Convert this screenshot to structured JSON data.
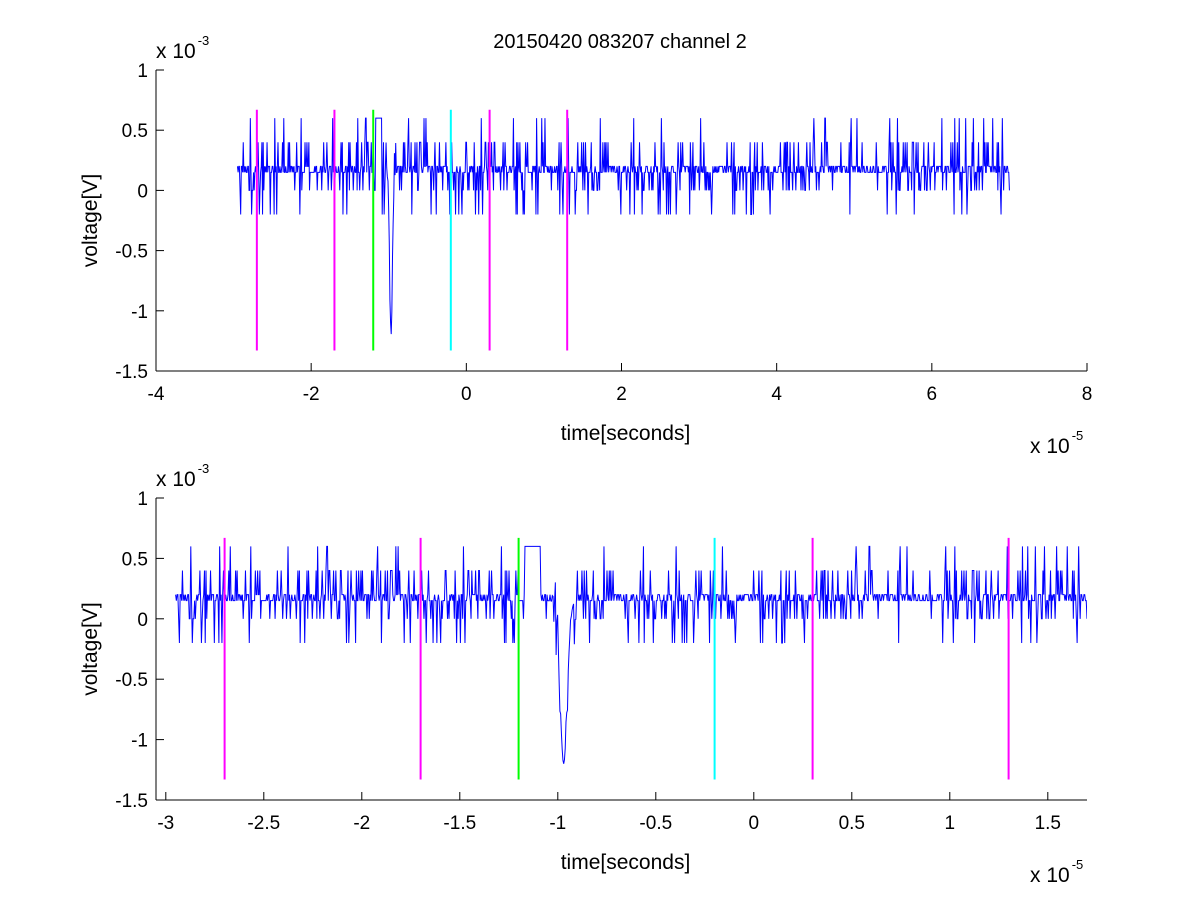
{
  "figure": {
    "title": "20150420 083207 channel 2"
  },
  "chart_data": [
    {
      "type": "line",
      "panel": "top",
      "xlabel": "time[seconds]",
      "ylabel": "voltage[V]",
      "x_scale_label": "x 10",
      "x_scale_exponent": "-5",
      "y_scale_label": "x 10",
      "y_scale_exponent": "-3",
      "xlim": [
        -4,
        8
      ],
      "ylim": [
        -1.5,
        1
      ],
      "x_ticks": [
        -4,
        -2,
        0,
        2,
        4,
        6,
        8
      ],
      "x_tick_labels": [
        "-4",
        "-2",
        "0",
        "2",
        "4",
        "6",
        "8"
      ],
      "y_ticks": [
        -1.5,
        -1,
        -0.5,
        0,
        0.5,
        1
      ],
      "y_tick_labels": [
        "-1.5",
        "-1",
        "-0.5",
        "0",
        "0.5",
        "1"
      ],
      "signal": {
        "color": "#0000ff",
        "x_range": [
          -2.95,
          7.0
        ],
        "baseline": 0.15,
        "spike_x": -0.97,
        "spike_y": -1.2
      },
      "markers": [
        {
          "x": -2.7,
          "color": "#ff00ff",
          "y_range": [
            -1.33,
            0.67
          ]
        },
        {
          "x": -1.7,
          "color": "#ff00ff",
          "y_range": [
            -1.33,
            0.67
          ]
        },
        {
          "x": -1.2,
          "color": "#00ff00",
          "y_range": [
            -1.33,
            0.67
          ]
        },
        {
          "x": -0.2,
          "color": "#00ffff",
          "y_range": [
            -1.33,
            0.67
          ]
        },
        {
          "x": 0.3,
          "color": "#ff00ff",
          "y_range": [
            -1.33,
            0.67
          ]
        },
        {
          "x": 1.3,
          "color": "#ff00ff",
          "y_range": [
            -1.33,
            0.67
          ]
        }
      ]
    },
    {
      "type": "line",
      "panel": "bottom",
      "xlabel": "time[seconds]",
      "ylabel": "voltage[V]",
      "x_scale_label": "x 10",
      "x_scale_exponent": "-5",
      "y_scale_label": "x 10",
      "y_scale_exponent": "-3",
      "xlim": [
        -3.05,
        1.7
      ],
      "ylim": [
        -1.5,
        1
      ],
      "x_ticks": [
        -3,
        -2.5,
        -2,
        -1.5,
        -1,
        -0.5,
        0,
        0.5,
        1,
        1.5
      ],
      "x_tick_labels": [
        "-3",
        "-2.5",
        "-2",
        "-1.5",
        "-1",
        "-0.5",
        "0",
        "0.5",
        "1",
        "1.5"
      ],
      "y_ticks": [
        -1.5,
        -1,
        -0.5,
        0,
        0.5,
        1
      ],
      "y_tick_labels": [
        "-1.5",
        "-1",
        "-0.5",
        "0",
        "0.5",
        "1"
      ],
      "signal": {
        "color": "#0000ff",
        "x_range": [
          -2.95,
          1.7
        ],
        "baseline": 0.15,
        "spike_x": -0.97,
        "spike_y": -1.2
      },
      "markers": [
        {
          "x": -2.7,
          "color": "#ff00ff",
          "y_range": [
            -1.33,
            0.67
          ]
        },
        {
          "x": -1.7,
          "color": "#ff00ff",
          "y_range": [
            -1.33,
            0.67
          ]
        },
        {
          "x": -1.2,
          "color": "#00ff00",
          "y_range": [
            -1.33,
            0.67
          ]
        },
        {
          "x": -0.2,
          "color": "#00ffff",
          "y_range": [
            -1.33,
            0.67
          ]
        },
        {
          "x": 0.3,
          "color": "#ff00ff",
          "y_range": [
            -1.33,
            0.67
          ]
        },
        {
          "x": 1.3,
          "color": "#ff00ff",
          "y_range": [
            -1.33,
            0.67
          ]
        }
      ]
    }
  ]
}
